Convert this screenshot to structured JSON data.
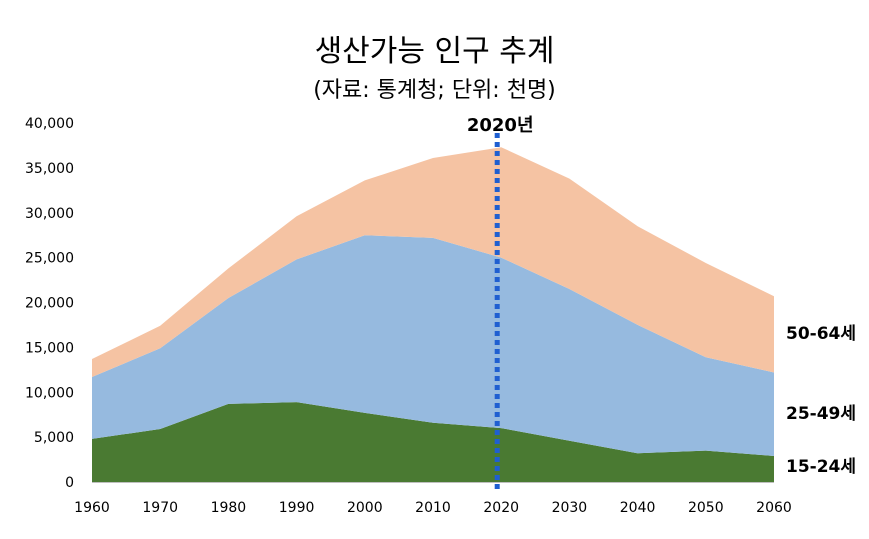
{
  "title": "생산가능 인구 추계",
  "subtitle": "(자료: 통계청; 단위: 천명)",
  "colors": {
    "age_15_24": "#4a7a32",
    "age_25_49": "#96badf",
    "age_50_64": "#f5c3a3",
    "marker": "#1f5fd1"
  },
  "chart_data": {
    "type": "area",
    "stacked": true,
    "title": "생산가능 인구 추계",
    "subtitle": "(자료: 통계청; 단위: 천명)",
    "x": [
      1960,
      1970,
      1980,
      1990,
      2000,
      2010,
      2020,
      2030,
      2040,
      2050,
      2060
    ],
    "ylim": [
      0,
      40000
    ],
    "y_ticks": [
      "0",
      "5,000",
      "10,000",
      "15,000",
      "20,000",
      "25,000",
      "30,000",
      "35,000",
      "40,000"
    ],
    "x_ticks": [
      "1960",
      "1970",
      "1980",
      "1990",
      "2000",
      "2010",
      "2020",
      "2030",
      "2040",
      "2050",
      "2060"
    ],
    "series": [
      {
        "name": "15-24세",
        "values": [
          4800,
          5900,
          8700,
          8900,
          7700,
          6600,
          6000,
          4600,
          3200,
          3500,
          2900
        ]
      },
      {
        "name": "25-49세",
        "values": [
          6900,
          9000,
          11800,
          15900,
          19800,
          20600,
          19000,
          16900,
          14300,
          10400,
          9300
        ]
      },
      {
        "name": "50-64세",
        "values": [
          2000,
          2500,
          3300,
          4800,
          6100,
          8900,
          12300,
          12300,
          11000,
          10500,
          8500
        ]
      }
    ],
    "marker": {
      "x": 2020,
      "label": "2020년"
    },
    "legend": "right"
  }
}
